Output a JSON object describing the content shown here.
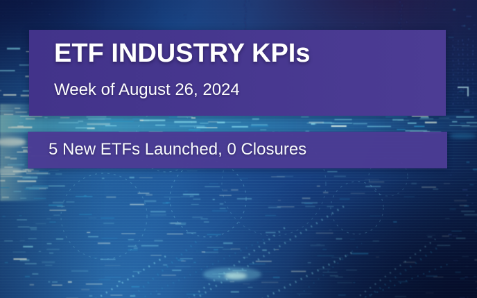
{
  "poster": {
    "title": "ETF INDUSTRY KPIs",
    "subtitle": "Week of August 26, 2024",
    "stat_line": "5 New ETFs Launched, 0 Closures"
  },
  "colors": {
    "banner_purple": "#42338a",
    "banner_purple_light": "#4c3c94",
    "text_white": "#ffffff",
    "bg_navy_dark": "#0d2450",
    "bg_blue_mid": "#1b4f93",
    "bg_violet_dark": "#261a46",
    "accent_cyan": "#7fd4ea",
    "accent_cyan_deep": "#2f9cd0",
    "accent_pale": "#e4f8ea",
    "accent_dim_blue": "#3d5aa8"
  }
}
